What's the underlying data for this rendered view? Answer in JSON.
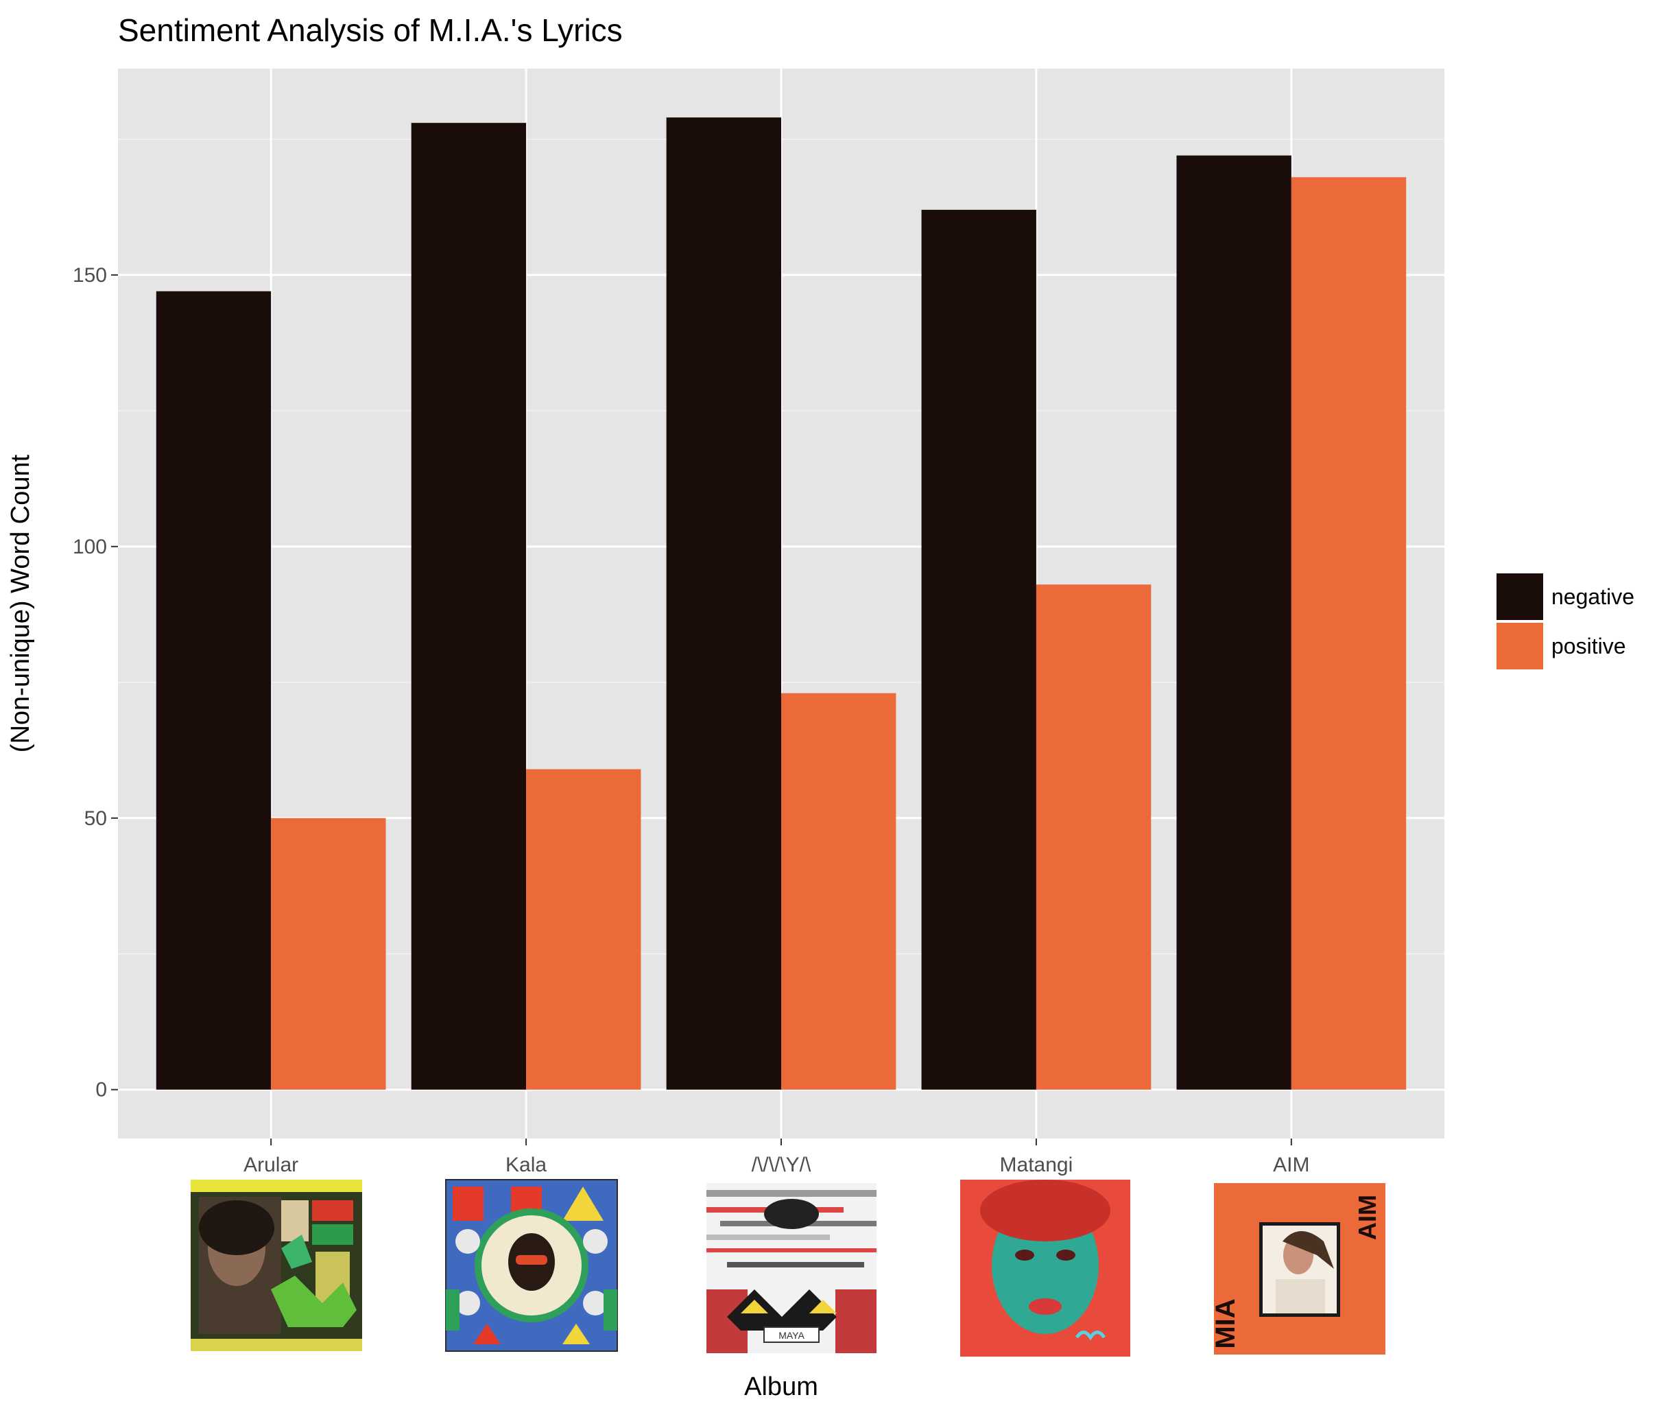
{
  "chart_data": {
    "type": "bar",
    "title": "Sentiment Analysis of M.I.A.'s Lyrics",
    "xlabel": "Album",
    "ylabel": "(Non-unique) Word Count",
    "categories": [
      "Arular",
      "Kala",
      "/\\/\\/\\Y/\\",
      "Matangi",
      "AIM"
    ],
    "series": [
      {
        "name": "negative",
        "color": "#1a0c09",
        "values": [
          147,
          178,
          179,
          162,
          172
        ]
      },
      {
        "name": "positive",
        "color": "#ec6a3a",
        "values": [
          50,
          59,
          73,
          93,
          168
        ]
      }
    ],
    "ylim": [
      -9,
      188
    ],
    "yticks": [
      0,
      50,
      100,
      150
    ],
    "ytick_labels": [
      "0",
      "50",
      "100",
      "150"
    ],
    "grid": true,
    "legend_position": "right",
    "panel_background": "#e5e5e5",
    "album_cover_images": [
      "arular-cover",
      "kala-cover",
      "maya-cover",
      "matangi-cover",
      "aim-cover"
    ]
  },
  "covers": {
    "aim_text_top": "AIM",
    "aim_text_side": "MIA",
    "maya_tag": "MAYA"
  }
}
